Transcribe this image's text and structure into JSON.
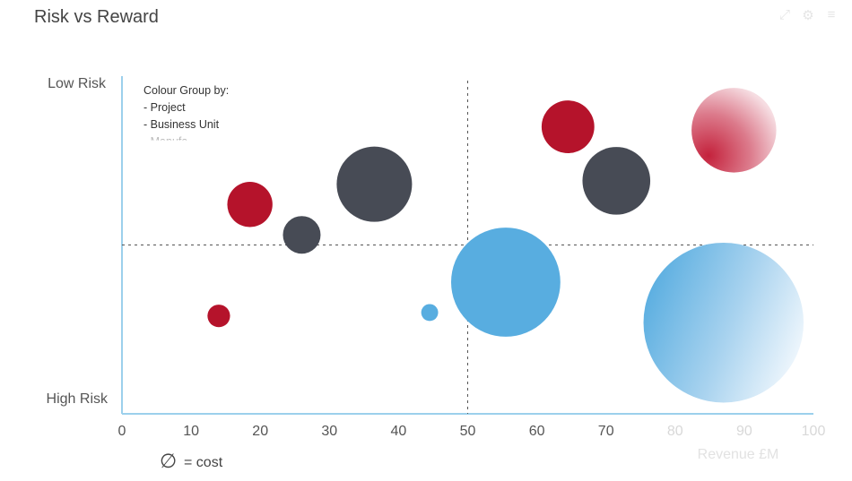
{
  "title": "Risk vs Reward",
  "toolbar": {
    "icons": [
      "expand-icon",
      "gear-icon",
      "menu-icon"
    ],
    "color": "#e6e6e6"
  },
  "colors": {
    "project_red": "#b5132b",
    "project_dark": "#474b55",
    "project_blue": "#58ade0",
    "axis": "#9cd0ec"
  },
  "chart_data": {
    "type": "scatter",
    "title": "Risk vs Reward",
    "xlabel": "Revenue £M",
    "ylabel": "",
    "xlim": [
      0,
      100
    ],
    "x_ticks": [
      0,
      10,
      20,
      30,
      40,
      50,
      60,
      70,
      80,
      90,
      100
    ],
    "y_top_label": "Low Risk",
    "y_bottom_label": "High Risk",
    "size_legend": "= cost",
    "size_legend_symbol": "∅",
    "legend_note": {
      "title": "Colour Group by:",
      "items": [
        "- Project",
        "- Business Unit",
        "- Manufa..."
      ]
    },
    "quadrant_lines": {
      "x": 50,
      "y": 50
    },
    "grid": false,
    "points": [
      {
        "x": 14,
        "y": 29,
        "size": 12,
        "color": "red"
      },
      {
        "x": 18.5,
        "y": 62,
        "size": 24,
        "color": "red"
      },
      {
        "x": 26,
        "y": 53,
        "size": 20,
        "color": "dark"
      },
      {
        "x": 36.5,
        "y": 68,
        "size": 40,
        "color": "dark"
      },
      {
        "x": 44.5,
        "y": 30,
        "size": 9,
        "color": "blue"
      },
      {
        "x": 55.5,
        "y": 39,
        "size": 58,
        "color": "blue"
      },
      {
        "x": 64.5,
        "y": 85,
        "size": 28,
        "color": "red"
      },
      {
        "x": 71.5,
        "y": 69,
        "size": 36,
        "color": "dark"
      },
      {
        "x": 88.5,
        "y": 84,
        "size": 45,
        "color": "red-fade"
      },
      {
        "x": 87,
        "y": 27,
        "size": 85,
        "color": "blue-fade"
      }
    ]
  }
}
